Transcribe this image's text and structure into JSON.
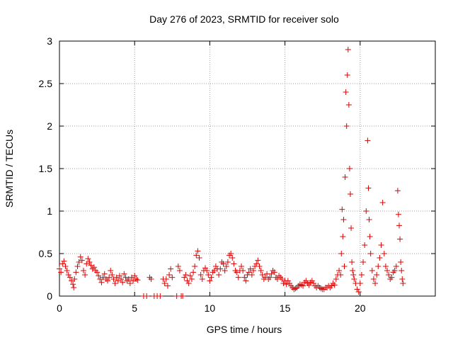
{
  "chart_data": {
    "type": "scatter",
    "title": "Day 276 of 2023, SRMTID for receiver solo",
    "xlabel": "GPS time / hours",
    "ylabel": "SRMTID / TECUs",
    "xlim": [
      0,
      25
    ],
    "ylim": [
      0,
      3
    ],
    "xticks": [
      0,
      5,
      10,
      15,
      20
    ],
    "yticks": [
      0,
      0.5,
      1,
      1.5,
      2,
      2.5,
      3
    ],
    "xtick_labels": [
      "0",
      "5",
      "10",
      "15",
      "20"
    ],
    "ytick_labels": [
      "0",
      "0.5",
      "1",
      "1.5",
      "2",
      "2.5",
      "3"
    ],
    "grid": true,
    "marker": "+",
    "color": "#dd0000",
    "series": [
      {
        "name": "SRMTID",
        "points": [
          [
            0.0,
            0.32
          ],
          [
            0.1,
            0.28
          ],
          [
            0.2,
            0.38
          ],
          [
            0.3,
            0.41
          ],
          [
            0.4,
            0.35
          ],
          [
            0.5,
            0.3
          ],
          [
            0.6,
            0.25
          ],
          [
            0.7,
            0.22
          ],
          [
            0.8,
            0.18
          ],
          [
            0.9,
            0.14
          ],
          [
            0.95,
            0.1
          ],
          [
            1.0,
            0.2
          ],
          [
            1.1,
            0.28
          ],
          [
            1.2,
            0.35
          ],
          [
            1.3,
            0.4
          ],
          [
            1.4,
            0.46
          ],
          [
            1.5,
            0.42
          ],
          [
            1.6,
            0.3
          ],
          [
            1.7,
            0.25
          ],
          [
            1.8,
            0.38
          ],
          [
            1.9,
            0.44
          ],
          [
            2.0,
            0.4
          ],
          [
            2.1,
            0.36
          ],
          [
            2.2,
            0.32
          ],
          [
            2.3,
            0.34
          ],
          [
            2.4,
            0.3
          ],
          [
            2.5,
            0.28
          ],
          [
            2.6,
            0.24
          ],
          [
            2.7,
            0.2
          ],
          [
            2.8,
            0.16
          ],
          [
            2.9,
            0.22
          ],
          [
            3.0,
            0.26
          ],
          [
            3.1,
            0.2
          ],
          [
            3.2,
            0.18
          ],
          [
            3.3,
            0.22
          ],
          [
            3.4,
            0.3
          ],
          [
            3.5,
            0.25
          ],
          [
            3.6,
            0.2
          ],
          [
            3.7,
            0.15
          ],
          [
            3.8,
            0.22
          ],
          [
            3.9,
            0.18
          ],
          [
            4.0,
            0.24
          ],
          [
            4.1,
            0.2
          ],
          [
            4.2,
            0.16
          ],
          [
            4.3,
            0.26
          ],
          [
            4.4,
            0.22
          ],
          [
            4.5,
            0.18
          ],
          [
            4.6,
            0.2
          ],
          [
            4.7,
            0.15
          ],
          [
            4.8,
            0.22
          ],
          [
            4.9,
            0.18
          ],
          [
            5.0,
            0.24
          ],
          [
            5.1,
            0.2
          ],
          [
            5.2,
            0.19
          ],
          [
            5.6,
            0.0
          ],
          [
            5.8,
            0.0
          ],
          [
            6.0,
            0.22
          ],
          [
            6.1,
            0.2
          ],
          [
            6.3,
            0.0
          ],
          [
            6.5,
            0.0
          ],
          [
            6.7,
            0.0
          ],
          [
            6.9,
            0.2
          ],
          [
            7.0,
            0.15
          ],
          [
            7.1,
            0.2
          ],
          [
            7.2,
            0.12
          ],
          [
            7.3,
            0.25
          ],
          [
            7.4,
            0.32
          ],
          [
            7.5,
            0.22
          ],
          [
            7.8,
            0.0
          ],
          [
            7.9,
            0.35
          ],
          [
            8.0,
            0.3
          ],
          [
            8.1,
            0.0
          ],
          [
            8.2,
            0.0
          ],
          [
            8.3,
            0.22
          ],
          [
            8.4,
            0.25
          ],
          [
            8.5,
            0.18
          ],
          [
            8.6,
            0.15
          ],
          [
            8.7,
            0.24
          ],
          [
            8.8,
            0.2
          ],
          [
            8.9,
            0.28
          ],
          [
            9.0,
            0.35
          ],
          [
            9.1,
            0.48
          ],
          [
            9.2,
            0.53
          ],
          [
            9.3,
            0.45
          ],
          [
            9.4,
            0.25
          ],
          [
            9.5,
            0.2
          ],
          [
            9.6,
            0.3
          ],
          [
            9.7,
            0.33
          ],
          [
            9.8,
            0.3
          ],
          [
            9.9,
            0.25
          ],
          [
            10.0,
            0.18
          ],
          [
            10.1,
            0.22
          ],
          [
            10.2,
            0.28
          ],
          [
            10.3,
            0.3
          ],
          [
            10.4,
            0.35
          ],
          [
            10.5,
            0.32
          ],
          [
            10.6,
            0.25
          ],
          [
            10.7,
            0.32
          ],
          [
            10.8,
            0.4
          ],
          [
            10.9,
            0.38
          ],
          [
            11.0,
            0.3
          ],
          [
            11.1,
            0.35
          ],
          [
            11.2,
            0.4
          ],
          [
            11.3,
            0.48
          ],
          [
            11.4,
            0.5
          ],
          [
            11.5,
            0.45
          ],
          [
            11.6,
            0.38
          ],
          [
            11.7,
            0.3
          ],
          [
            11.8,
            0.28
          ],
          [
            11.9,
            0.22
          ],
          [
            12.0,
            0.3
          ],
          [
            12.1,
            0.35
          ],
          [
            12.2,
            0.3
          ],
          [
            12.3,
            0.22
          ],
          [
            12.4,
            0.18
          ],
          [
            12.5,
            0.25
          ],
          [
            12.6,
            0.28
          ],
          [
            12.7,
            0.32
          ],
          [
            12.8,
            0.25
          ],
          [
            12.9,
            0.3
          ],
          [
            13.0,
            0.35
          ],
          [
            13.1,
            0.38
          ],
          [
            13.2,
            0.42
          ],
          [
            13.3,
            0.35
          ],
          [
            13.4,
            0.3
          ],
          [
            13.5,
            0.25
          ],
          [
            13.6,
            0.2
          ],
          [
            13.7,
            0.22
          ],
          [
            13.8,
            0.26
          ],
          [
            13.9,
            0.2
          ],
          [
            14.0,
            0.22
          ],
          [
            14.1,
            0.26
          ],
          [
            14.2,
            0.3
          ],
          [
            14.3,
            0.28
          ],
          [
            14.4,
            0.22
          ],
          [
            14.5,
            0.2
          ],
          [
            14.6,
            0.24
          ],
          [
            14.7,
            0.22
          ],
          [
            14.8,
            0.2
          ],
          [
            14.9,
            0.15
          ],
          [
            15.0,
            0.18
          ],
          [
            15.1,
            0.14
          ],
          [
            15.2,
            0.18
          ],
          [
            15.3,
            0.15
          ],
          [
            15.4,
            0.12
          ],
          [
            15.5,
            0.1
          ],
          [
            15.6,
            0.08
          ],
          [
            15.7,
            0.09
          ],
          [
            15.8,
            0.1
          ],
          [
            15.9,
            0.12
          ],
          [
            16.0,
            0.14
          ],
          [
            16.1,
            0.13
          ],
          [
            16.2,
            0.12
          ],
          [
            16.3,
            0.16
          ],
          [
            16.4,
            0.18
          ],
          [
            16.5,
            0.15
          ],
          [
            16.6,
            0.13
          ],
          [
            16.7,
            0.16
          ],
          [
            16.8,
            0.18
          ],
          [
            16.9,
            0.15
          ],
          [
            17.0,
            0.12
          ],
          [
            17.1,
            0.1
          ],
          [
            17.2,
            0.12
          ],
          [
            17.3,
            0.1
          ],
          [
            17.4,
            0.09
          ],
          [
            17.5,
            0.08
          ],
          [
            17.6,
            0.08
          ],
          [
            17.7,
            0.1
          ],
          [
            17.8,
            0.1
          ],
          [
            17.9,
            0.12
          ],
          [
            18.0,
            0.1
          ],
          [
            18.1,
            0.12
          ],
          [
            18.2,
            0.15
          ],
          [
            18.3,
            0.13
          ],
          [
            18.4,
            0.2
          ],
          [
            18.5,
            0.25
          ],
          [
            18.6,
            0.3
          ],
          [
            18.7,
            0.25
          ],
          [
            18.75,
            0.5
          ],
          [
            18.8,
            1.02
          ],
          [
            18.85,
            0.7
          ],
          [
            18.9,
            0.9
          ],
          [
            18.95,
            0.35
          ],
          [
            19.0,
            1.4
          ],
          [
            19.05,
            2.4
          ],
          [
            19.1,
            2.0
          ],
          [
            19.15,
            2.6
          ],
          [
            19.2,
            2.9
          ],
          [
            19.25,
            2.25
          ],
          [
            19.3,
            1.5
          ],
          [
            19.35,
            1.2
          ],
          [
            19.4,
            0.8
          ],
          [
            19.45,
            0.4
          ],
          [
            19.5,
            0.3
          ],
          [
            19.55,
            0.25
          ],
          [
            19.6,
            0.2
          ],
          [
            19.7,
            0.15
          ],
          [
            19.8,
            0.08
          ],
          [
            19.9,
            0.05
          ],
          [
            20.0,
            0.15
          ],
          [
            20.1,
            0.25
          ],
          [
            20.2,
            0.4
          ],
          [
            20.3,
            0.6
          ],
          [
            20.4,
            1.0
          ],
          [
            20.5,
            1.83
          ],
          [
            20.55,
            1.27
          ],
          [
            20.6,
            0.9
          ],
          [
            20.65,
            0.7
          ],
          [
            20.7,
            0.5
          ],
          [
            20.8,
            0.3
          ],
          [
            20.9,
            0.2
          ],
          [
            21.0,
            0.15
          ],
          [
            21.1,
            0.25
          ],
          [
            21.2,
            0.35
          ],
          [
            21.3,
            0.45
          ],
          [
            21.4,
            0.6
          ],
          [
            21.5,
            1.1
          ],
          [
            21.6,
            0.5
          ],
          [
            21.7,
            0.35
          ],
          [
            21.8,
            0.3
          ],
          [
            21.9,
            0.25
          ],
          [
            22.0,
            0.2
          ],
          [
            22.1,
            0.22
          ],
          [
            22.2,
            0.28
          ],
          [
            22.3,
            0.3
          ],
          [
            22.4,
            0.35
          ],
          [
            22.5,
            1.24
          ],
          [
            22.55,
            0.96
          ],
          [
            22.6,
            0.83
          ],
          [
            22.65,
            0.67
          ],
          [
            22.7,
            0.4
          ],
          [
            22.75,
            0.3
          ],
          [
            22.8,
            0.2
          ],
          [
            22.85,
            0.15
          ]
        ]
      }
    ]
  }
}
